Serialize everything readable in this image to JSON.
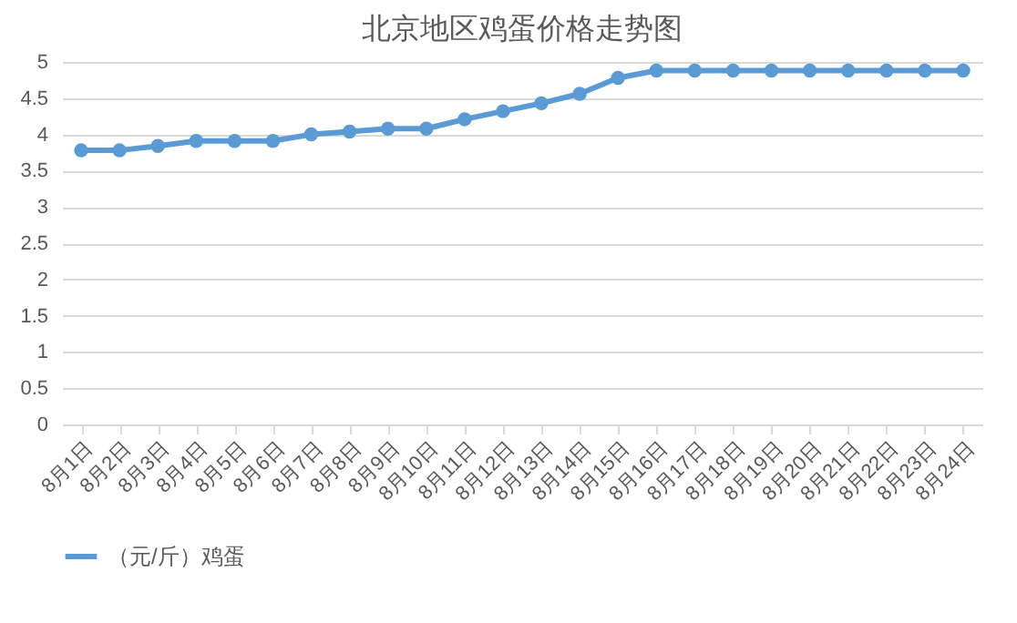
{
  "chart_data": {
    "type": "line",
    "title": "北京地区鸡蛋价格走势图",
    "categories": [
      "8月1日",
      "8月2日",
      "8月3日",
      "8月4日",
      "8月5日",
      "8月6日",
      "8月7日",
      "8月8日",
      "8月9日",
      "8月10日",
      "8月11日",
      "8月12日",
      "8月13日",
      "8月14日",
      "8月15日",
      "8月16日",
      "8月17日",
      "8月18日",
      "8月19日",
      "8月20日",
      "8月21日",
      "8月22日",
      "8月23日",
      "8月24日"
    ],
    "series": [
      {
        "name": "（元/斤）鸡蛋",
        "color": "#5b9bd5",
        "values": [
          3.78,
          3.78,
          3.84,
          3.91,
          3.91,
          3.91,
          4.0,
          4.04,
          4.08,
          4.08,
          4.21,
          4.32,
          4.43,
          4.56,
          4.78,
          4.88,
          4.88,
          4.88,
          4.88,
          4.88,
          4.88,
          4.88,
          4.88,
          4.88
        ]
      }
    ],
    "ylim": [
      0,
      5
    ],
    "yticks": [
      0,
      0.5,
      1,
      1.5,
      2,
      2.5,
      3,
      3.5,
      4,
      4.5,
      5
    ],
    "grid": "y",
    "legend": "bottom",
    "marker": "circle",
    "line_style": "solid"
  }
}
